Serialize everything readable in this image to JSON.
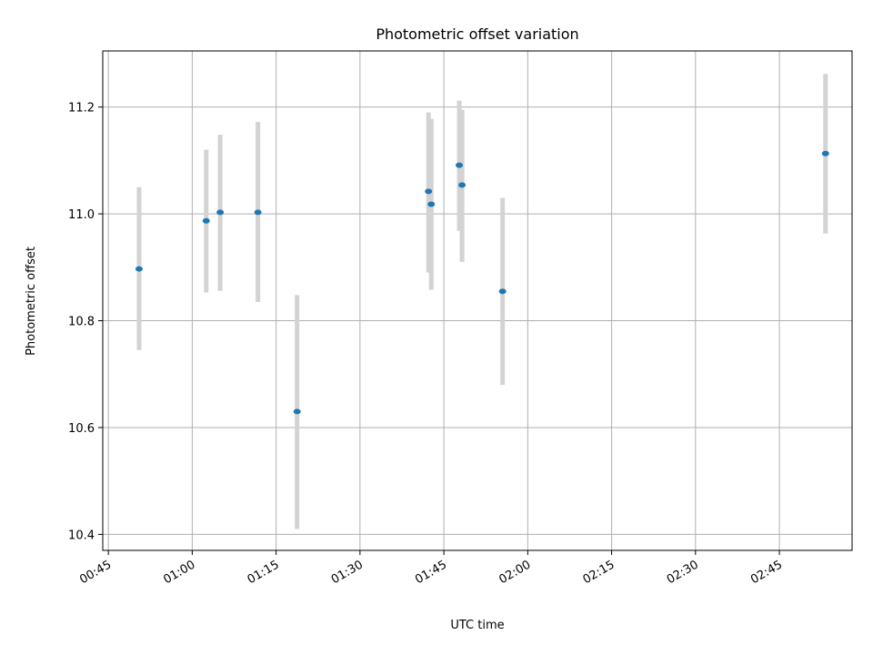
{
  "chart_data": {
    "type": "scatter",
    "title": "Photometric offset variation",
    "xlabel": "UTC time",
    "ylabel": "Photometric offset",
    "x_unit": "UTC time (HH:MM)",
    "xlim": [
      "00:44",
      "02:58"
    ],
    "ylim": [
      10.37,
      11.305
    ],
    "x_ticks": [
      "00:45",
      "01:00",
      "01:15",
      "01:30",
      "01:45",
      "02:00",
      "02:15",
      "02:30",
      "02:45"
    ],
    "y_ticks": [
      "10.4",
      "10.6",
      "10.8",
      "11.0",
      "11.2"
    ],
    "grid": true,
    "marker_color": "#1f77b4",
    "errorbar_color": "#d3d3d3",
    "points": [
      {
        "time": "00:50:30",
        "y": 10.897,
        "yerr_low": 10.745,
        "yerr_high": 11.05
      },
      {
        "time": "01:02:30",
        "y": 10.987,
        "yerr_low": 10.853,
        "yerr_high": 11.12
      },
      {
        "time": "01:05:00",
        "y": 11.003,
        "yerr_low": 10.856,
        "yerr_high": 11.148
      },
      {
        "time": "01:11:45",
        "y": 11.003,
        "yerr_low": 10.835,
        "yerr_high": 11.172
      },
      {
        "time": "01:18:45",
        "y": 10.63,
        "yerr_low": 10.41,
        "yerr_high": 10.848
      },
      {
        "time": "01:42:15",
        "y": 11.042,
        "yerr_low": 10.89,
        "yerr_high": 11.19
      },
      {
        "time": "01:42:45",
        "y": 11.018,
        "yerr_low": 10.858,
        "yerr_high": 11.178
      },
      {
        "time": "01:47:45",
        "y": 11.091,
        "yerr_low": 10.968,
        "yerr_high": 11.212
      },
      {
        "time": "01:48:15",
        "y": 11.054,
        "yerr_low": 10.91,
        "yerr_high": 11.195
      },
      {
        "time": "01:55:30",
        "y": 10.855,
        "yerr_low": 10.68,
        "yerr_high": 11.03
      },
      {
        "time": "02:53:15",
        "y": 11.113,
        "yerr_low": 10.963,
        "yerr_high": 11.262
      }
    ]
  }
}
